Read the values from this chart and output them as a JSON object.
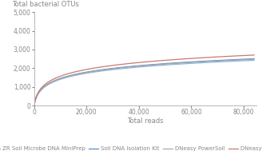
{
  "title_ylabel": "Total bacterial OTUs",
  "xlabel": "Total reads",
  "xlim": [
    0,
    85000
  ],
  "ylim": [
    0,
    5000
  ],
  "yticks": [
    0,
    1000,
    2000,
    3000,
    4000,
    5000
  ],
  "xticks": [
    0,
    20000,
    40000,
    60000,
    80000
  ],
  "series_params": [
    {
      "label": "ZR Soil Microbe DNA MiniPrep",
      "color": "#8ab4d8",
      "a": 490,
      "k": 600
    },
    {
      "label": "Soil DNA Isolation Kit",
      "color": "#5b8ec4",
      "a": 505,
      "k": 590
    },
    {
      "label": "DNeasy PowerSoil",
      "color": "#a8a8b0",
      "a": 498,
      "k": 580
    },
    {
      "label": "DNeasy PowerSoil Pro",
      "color": "#c97a6c",
      "a": 545,
      "k": 590
    }
  ],
  "background_color": "#ffffff",
  "tick_fontsize": 5.5,
  "label_fontsize": 6.0,
  "legend_fontsize": 5.0,
  "linewidth": 0.9,
  "spine_color": "#aaaaaa",
  "tick_color": "#888888"
}
